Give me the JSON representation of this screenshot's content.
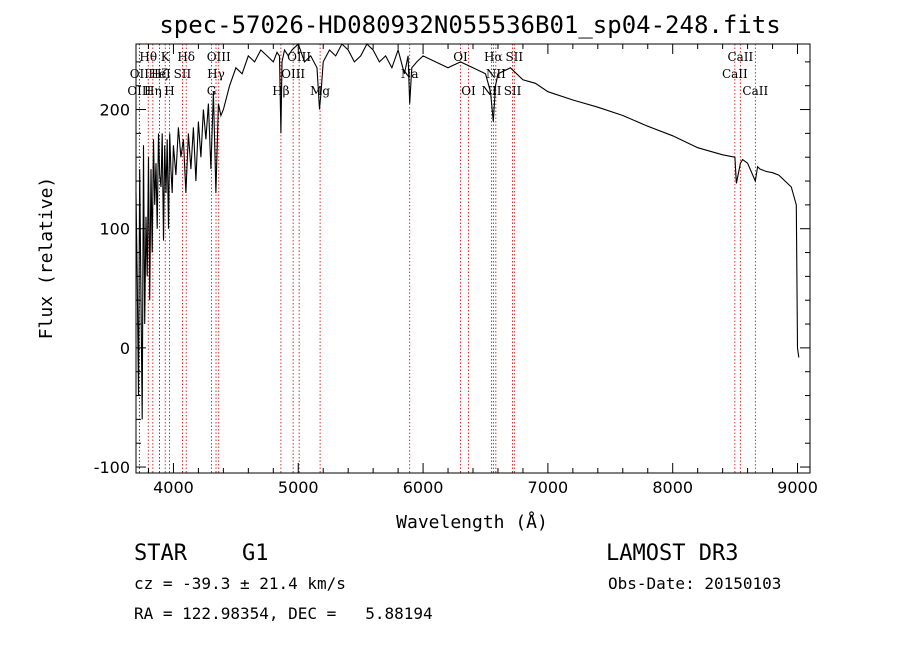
{
  "chart_data": {
    "type": "line",
    "title": "spec-57026-HD080932N055536B01_sp04-248.fits",
    "xlabel": "Wavelength (Å)",
    "ylabel": "Flux (relative)",
    "xlim": [
      3700,
      9100
    ],
    "ylim": [
      -105,
      255
    ],
    "x_ticks": [
      4000,
      5000,
      6000,
      7000,
      8000,
      9000
    ],
    "y_ticks": [
      -100,
      0,
      100,
      200
    ],
    "series": [
      {
        "name": "spectrum",
        "x": [
          3700,
          3710,
          3720,
          3730,
          3740,
          3750,
          3760,
          3770,
          3780,
          3790,
          3800,
          3810,
          3820,
          3830,
          3840,
          3850,
          3860,
          3870,
          3880,
          3890,
          3900,
          3910,
          3920,
          3930,
          3940,
          3950,
          3960,
          3970,
          3980,
          3990,
          4000,
          4020,
          4040,
          4060,
          4080,
          4100,
          4120,
          4140,
          4160,
          4180,
          4200,
          4220,
          4240,
          4260,
          4280,
          4300,
          4320,
          4340,
          4360,
          4380,
          4400,
          4450,
          4500,
          4550,
          4600,
          4650,
          4700,
          4750,
          4800,
          4830,
          4850,
          4861,
          4870,
          4890,
          4920,
          4950,
          5000,
          5050,
          5100,
          5150,
          5170,
          5183,
          5200,
          5250,
          5300,
          5350,
          5400,
          5450,
          5500,
          5550,
          5600,
          5650,
          5700,
          5750,
          5800,
          5850,
          5880,
          5893,
          5910,
          5950,
          6000,
          6100,
          6200,
          6300,
          6400,
          6500,
          6540,
          6563,
          6580,
          6600,
          6700,
          6800,
          6900,
          7000,
          7200,
          7400,
          7600,
          7800,
          8000,
          8200,
          8400,
          8498,
          8510,
          8542,
          8560,
          8600,
          8662,
          8680,
          8700,
          8750,
          8800,
          8850,
          8900,
          8950,
          8990,
          9000,
          9010
        ],
        "values": [
          130,
          60,
          -40,
          150,
          40,
          -60,
          170,
          20,
          110,
          60,
          160,
          40,
          150,
          80,
          175,
          120,
          155,
          100,
          180,
          145,
          135,
          180,
          90,
          170,
          130,
          175,
          100,
          180,
          150,
          130,
          170,
          145,
          185,
          160,
          175,
          130,
          180,
          150,
          185,
          140,
          190,
          160,
          200,
          175,
          205,
          150,
          215,
          130,
          205,
          195,
          200,
          220,
          235,
          230,
          245,
          240,
          250,
          245,
          240,
          248,
          245,
          180,
          240,
          250,
          245,
          250,
          255,
          240,
          245,
          235,
          200,
          215,
          240,
          250,
          245,
          255,
          250,
          240,
          245,
          255,
          250,
          240,
          245,
          235,
          250,
          230,
          245,
          205,
          235,
          240,
          245,
          240,
          235,
          240,
          235,
          230,
          215,
          190,
          220,
          230,
          235,
          225,
          222,
          215,
          208,
          202,
          195,
          186,
          178,
          168,
          162,
          160,
          138,
          155,
          158,
          155,
          140,
          152,
          150,
          148,
          147,
          145,
          140,
          135,
          120,
          0,
          -8
        ]
      }
    ],
    "line_markers": [
      {
        "label": "Hθ",
        "wl": 3798,
        "row": 1
      },
      {
        "label": "OII",
        "wl": 3727,
        "row": 2
      },
      {
        "label": "OIII",
        "wl": 3727,
        "row": 3
      },
      {
        "label": "Hη",
        "wl": 3835,
        "row": 3
      },
      {
        "label": "Hζ",
        "wl": 3889,
        "row": 2
      },
      {
        "label": "K",
        "wl": 3934,
        "row": 1
      },
      {
        "label": "H",
        "wl": 3968,
        "row": 3
      },
      {
        "label": "HeI",
        "wl": 3889,
        "row": 2
      },
      {
        "label": "SII",
        "wl": 4072,
        "row": 2
      },
      {
        "label": "Hδ",
        "wl": 4102,
        "row": 1
      },
      {
        "label": "OIII",
        "wl": 4363,
        "row": 1
      },
      {
        "label": "Hγ",
        "wl": 4341,
        "row": 2
      },
      {
        "label": "G",
        "wl": 4305,
        "row": 3
      },
      {
        "label": "Hβ",
        "wl": 4861,
        "row": 3
      },
      {
        "label": "OIII",
        "wl": 4959,
        "row": 2
      },
      {
        "label": "OIII",
        "wl": 5007,
        "row": 1
      },
      {
        "label": "Mg",
        "wl": 5175,
        "row": 3
      },
      {
        "label": "Na",
        "wl": 5893,
        "row": 2
      },
      {
        "label": "OI",
        "wl": 6300,
        "row": 1
      },
      {
        "label": "OI",
        "wl": 6364,
        "row": 3
      },
      {
        "label": "NII",
        "wl": 6548,
        "row": 3
      },
      {
        "label": "Hα",
        "wl": 6563,
        "row": 1
      },
      {
        "label": "NII",
        "wl": 6583,
        "row": 2
      },
      {
        "label": "SII",
        "wl": 6717,
        "row": 3
      },
      {
        "label": "SII",
        "wl": 6731,
        "row": 1
      },
      {
        "label": "CaII",
        "wl": 8498,
        "row": 2
      },
      {
        "label": "CaII",
        "wl": 8542,
        "row": 1
      },
      {
        "label": "CaII",
        "wl": 8662,
        "row": 3
      }
    ]
  },
  "info": {
    "object_class": "STAR",
    "subclass": "G1",
    "survey": "LAMOST DR3",
    "cz": "cz = -39.3 ± 21.4 km/s",
    "obs_date": "Obs-Date: 20150103",
    "coords": "RA = 122.98354, DEC =   5.88194"
  },
  "colors": {
    "line": "#000000",
    "marker": "#cc0000"
  }
}
